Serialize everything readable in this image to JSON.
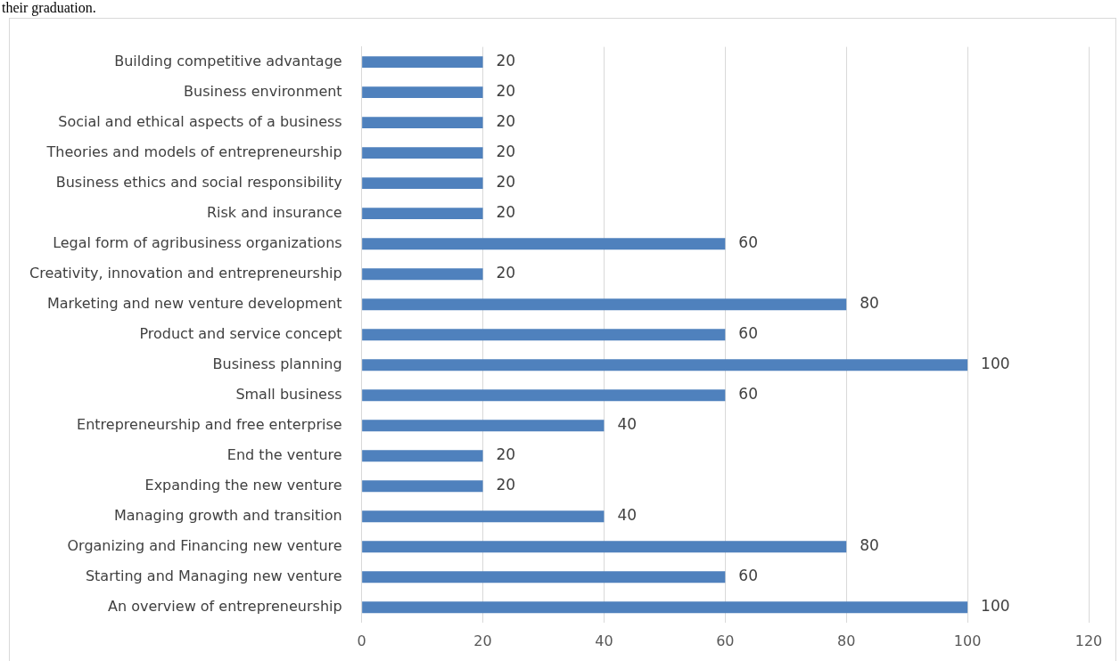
{
  "chart_data": {
    "type": "bar",
    "orientation": "horizontal",
    "annotations": [
      "their graduation."
    ],
    "categories": [
      "Building competitive advantage",
      "Business environment",
      "Social and ethical aspects of a business",
      "Theories and models of entrepreneurship",
      "Business ethics and social responsibility",
      "Risk and insurance",
      "Legal form of agribusiness organizations",
      "Creativity, innovation and entrepreneurship",
      "Marketing and new venture development",
      "Product and service concept",
      "Business planning",
      "Small business",
      "Entrepreneurship and free enterprise",
      "End the venture",
      "Expanding the new venture",
      "Managing growth and transition",
      "Organizing and Financing new venture",
      "Starting and Managing new venture",
      "An overview of entrepreneurship"
    ],
    "values": [
      20,
      20,
      20,
      20,
      20,
      20,
      60,
      20,
      80,
      60,
      100,
      60,
      40,
      20,
      20,
      40,
      80,
      60,
      100
    ],
    "color": "#4f81bd",
    "xlim": [
      0,
      120
    ],
    "xticks": [
      0,
      20,
      40,
      60,
      80,
      100,
      120
    ],
    "grid": "x",
    "data_labels": true
  }
}
